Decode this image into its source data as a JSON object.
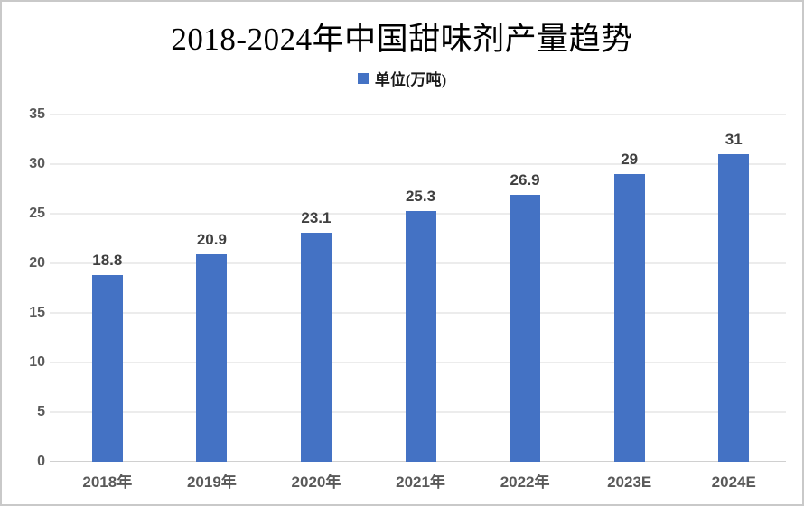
{
  "chart_data": {
    "type": "bar",
    "title": "2018-2024年中国甜味剂产量趋势",
    "legend_label": "单位(万吨)",
    "legend_position": "top",
    "categories": [
      "2018年",
      "2019年",
      "2020年",
      "2021年",
      "2022年",
      "2023E",
      "2024E"
    ],
    "values": [
      18.8,
      20.9,
      23.1,
      25.3,
      26.9,
      29,
      31
    ],
    "value_labels": [
      "18.8",
      "20.9",
      "23.1",
      "25.3",
      "26.9",
      "29",
      "31"
    ],
    "xlabel": "",
    "ylabel": "",
    "ylim": [
      0,
      35
    ],
    "yticks": [
      0,
      5,
      10,
      15,
      20,
      25,
      30,
      35
    ],
    "grid": true,
    "colors": {
      "bar": "#4472C4",
      "grid": "#D9D9D9",
      "axis_line": "#D0D0D0",
      "axis_text": "#595959",
      "value_label": "#404040",
      "title": "#000000",
      "border": "#C9C9C9",
      "background": "#FFFFFF"
    }
  }
}
